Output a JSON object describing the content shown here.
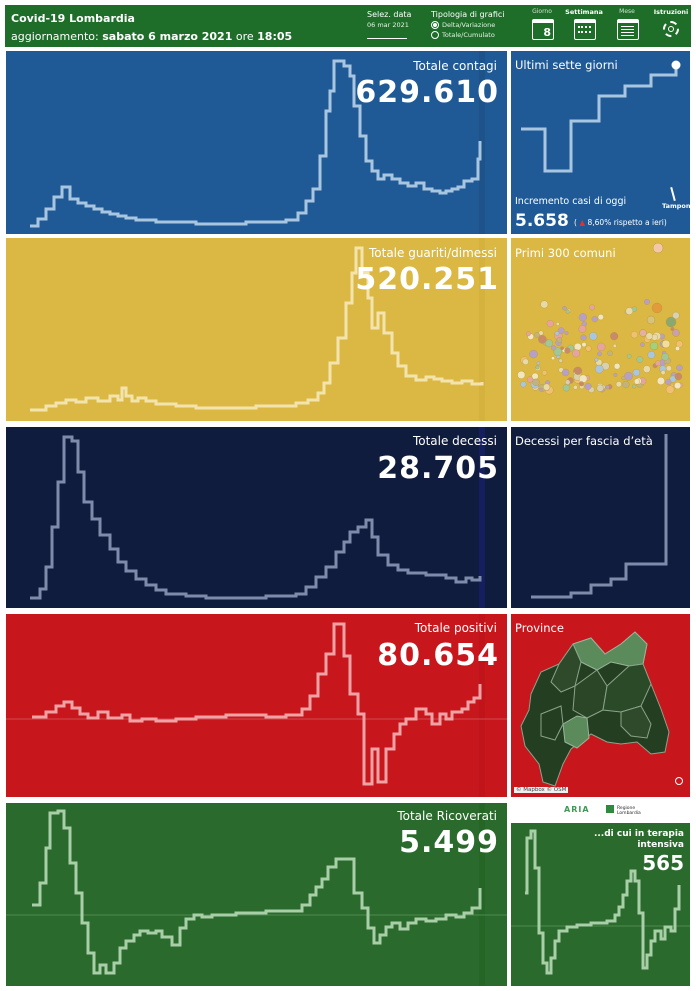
{
  "header": {
    "title": "Covid-19 Lombardia",
    "update_prefix": "aggiornamento:",
    "update_date": "sabato 6 marzo 2021",
    "update_ore": "ore",
    "update_time": "18:05",
    "date_selector_label": "Selez. data",
    "date_selector_value": "06 mar 2021",
    "chart_type_label": "Tipologia di grafici",
    "option_delta": "Delta/Variazione",
    "option_total": "Totale/Cumulato",
    "view_day_label": "Giorno",
    "view_day_number": "8",
    "view_week_label": "Settimana",
    "view_month_label": "Mese",
    "instructions_label": "Istruzioni"
  },
  "panels": {
    "contagi": {
      "title": "Totale contagi",
      "value": "629.610"
    },
    "guariti": {
      "title": "Totale guariti/dimessi",
      "value": "520.251"
    },
    "decessi": {
      "title": "Totale decessi",
      "value": "28.705"
    },
    "positivi": {
      "title": "Totale positivi",
      "value": "80.654"
    },
    "ricoverati": {
      "title": "Totale Ricoverati",
      "value": "5.499"
    },
    "terapia": {
      "title": "...di cui in terapia intensiva",
      "value": "565"
    }
  },
  "side": {
    "seven_days_title": "Ultimi sette giorni",
    "increment_label": "Incremento casi di oggi",
    "increment_value": "5.658",
    "increment_change": "8,60% rispetto a  ieri)",
    "increment_open_paren": "(",
    "tamponi_label": "Tamponi",
    "comuni_title": "Primi 300 comuni",
    "age_title": "Decessi per fascia d’età",
    "province_title": "Province",
    "map_credit": "© Mapbox © OSM"
  },
  "logos": {
    "aria": "ARIA",
    "regione": "Regione Lombardia"
  },
  "colors": {
    "contagi": "#1f5a96",
    "guariti": "#dbb843",
    "decessi": "#101c3d",
    "positivi": "#c8161d",
    "ricoverati": "#2a6a2c",
    "header": "#1e6e2a"
  }
}
